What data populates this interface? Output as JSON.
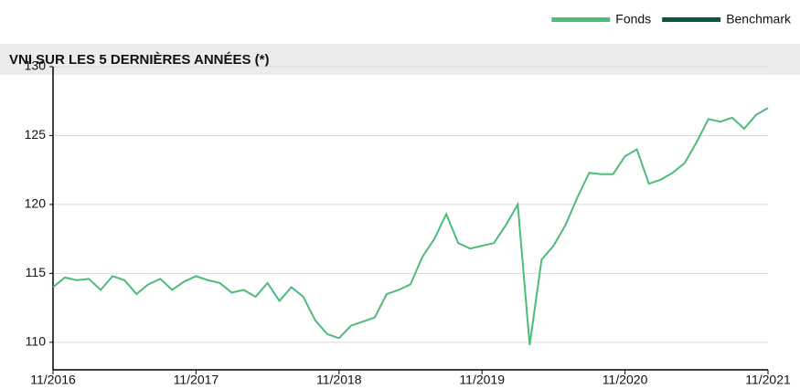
{
  "chart_data": {
    "type": "line",
    "title": "VNI SUR LES 5 DERNIÈRES ANNÉES (*)",
    "x": [
      "11/2016",
      null,
      null,
      null,
      null,
      null,
      null,
      null,
      null,
      null,
      null,
      null,
      "11/2017",
      null,
      null,
      null,
      null,
      null,
      null,
      null,
      null,
      null,
      null,
      null,
      "11/2018",
      null,
      null,
      null,
      null,
      null,
      null,
      null,
      null,
      null,
      null,
      null,
      "11/2019",
      null,
      null,
      null,
      null,
      null,
      null,
      null,
      null,
      null,
      null,
      null,
      "11/2020",
      null,
      null,
      null,
      null,
      null,
      null,
      null,
      null,
      null,
      null,
      null,
      "11/2021"
    ],
    "series": [
      {
        "name": "Fonds",
        "color": "#4dbb7a",
        "values": [
          114.0,
          114.7,
          114.5,
          114.6,
          113.8,
          114.8,
          114.5,
          113.5,
          114.2,
          114.6,
          113.8,
          114.4,
          114.8,
          114.5,
          114.3,
          113.6,
          113.8,
          113.3,
          114.3,
          113.0,
          114.0,
          113.3,
          111.6,
          110.6,
          110.3,
          111.2,
          111.5,
          111.8,
          113.5,
          113.8,
          114.2,
          116.2,
          117.5,
          119.3,
          117.2,
          116.8,
          117.0,
          117.2,
          118.5,
          120.0,
          109.8,
          116.0,
          117.0,
          118.5,
          120.5,
          122.3,
          122.2,
          122.2,
          123.5,
          124.0,
          121.5,
          121.8,
          122.3,
          123.0,
          124.5,
          126.2,
          126.0,
          126.3,
          125.5,
          126.5,
          127.0
        ]
      },
      {
        "name": "Benchmark",
        "color": "#0b5345",
        "values": [
          null,
          null,
          null,
          null,
          null,
          null,
          null,
          null,
          null,
          null,
          null,
          null,
          null,
          null,
          null,
          null,
          null,
          null,
          null,
          null,
          null,
          null,
          null,
          null,
          null,
          null,
          null,
          null,
          null,
          null,
          null,
          null,
          null,
          null,
          null,
          null,
          null,
          null,
          null,
          null,
          null,
          null,
          null,
          null,
          null,
          null,
          null,
          null,
          null,
          null,
          null,
          null,
          null,
          null,
          null,
          null,
          null,
          null,
          null,
          null,
          null
        ]
      }
    ],
    "ylim": [
      108,
      130
    ],
    "yticks": [
      110,
      115,
      120,
      125,
      130
    ],
    "grid": true,
    "legend": "top-right"
  }
}
